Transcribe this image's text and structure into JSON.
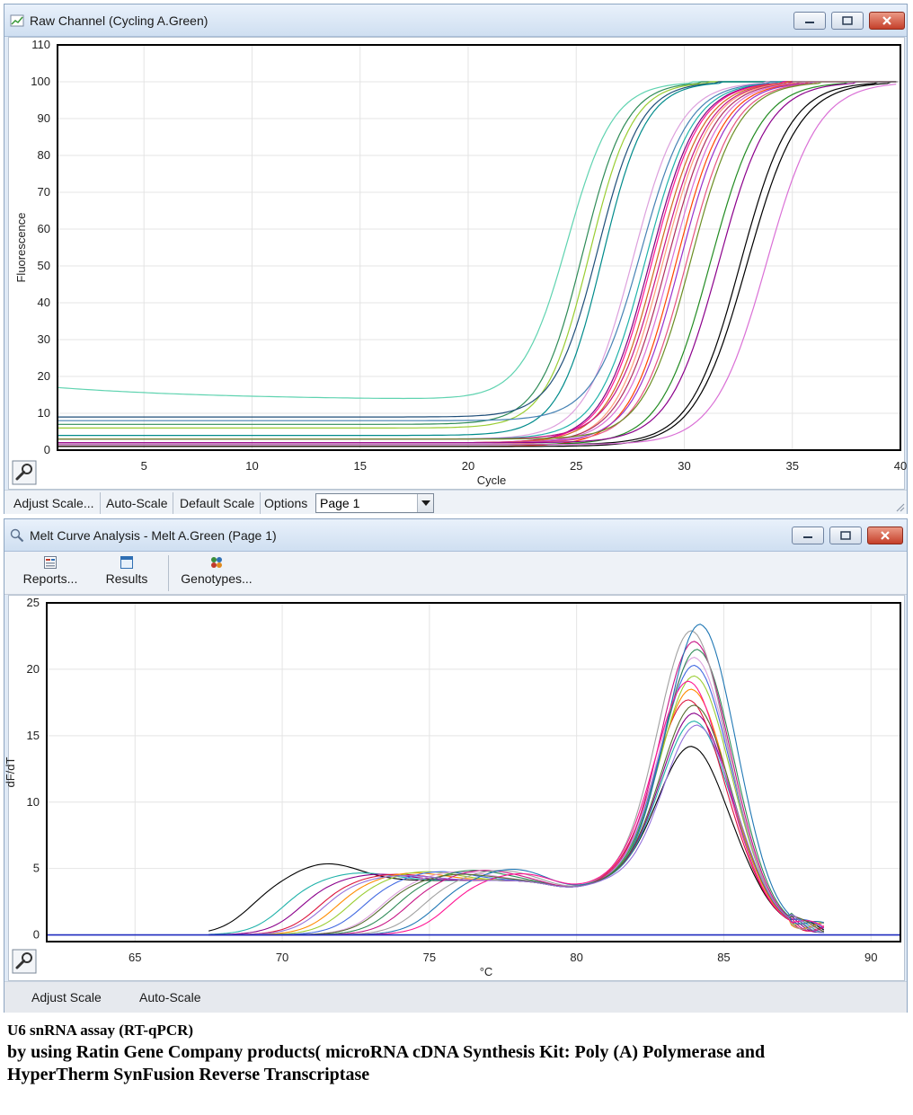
{
  "window1": {
    "title": "Raw Channel (Cycling A.Green)",
    "toolbar": {
      "adjust_scale": "Adjust Scale...",
      "auto_scale": "Auto-Scale",
      "default_scale": "Default Scale",
      "options": "Options",
      "page_select": "Page 1"
    }
  },
  "window2": {
    "title": "Melt Curve Analysis - Melt A.Green (Page 1)",
    "ribbon": {
      "reports": "Reports...",
      "results": "Results",
      "genotypes": "Genotypes..."
    },
    "toolbar": {
      "adjust_scale": "Adjust Scale",
      "auto_scale": "Auto-Scale"
    }
  },
  "caption": {
    "line1": "U6 snRNA assay (RT-qPCR)",
    "line2": "by using Ratin Gene Company products( microRNA cDNA Synthesis Kit: Poly (A) Polymerase and",
    "line3": "HyperTherm SynFusion Reverse Transcriptase"
  },
  "chart_data": [
    {
      "type": "line",
      "xlabel": "Cycle",
      "ylabel": "Fluorescence",
      "xlim": [
        1,
        40
      ],
      "ylim": [
        0,
        110
      ],
      "x_ticks": [
        5,
        10,
        15,
        20,
        25,
        30,
        35,
        40
      ],
      "y_ticks": [
        0,
        10,
        20,
        30,
        40,
        50,
        60,
        70,
        80,
        90,
        100,
        110
      ],
      "grid": true,
      "model": "sigmoid: baseline + (100 - baseline) / (1 + exp(-(cycle - midpoint) / slope)), plateau at 100",
      "series": [
        {
          "color": "#5fd3b0",
          "baseline": 17,
          "midpoint": 24.6,
          "slope": 1.05
        },
        {
          "color": "#2e8b57",
          "baseline": 7,
          "midpoint": 25.3,
          "slope": 1.0
        },
        {
          "color": "#9acd32",
          "baseline": 6,
          "midpoint": 25.6,
          "slope": 1.0
        },
        {
          "color": "#1f4e79",
          "baseline": 9,
          "midpoint": 26.0,
          "slope": 1.0
        },
        {
          "color": "#008b8b",
          "baseline": 4,
          "midpoint": 26.2,
          "slope": 1.0
        },
        {
          "color": "#dda0dd",
          "baseline": 3,
          "midpoint": 27.6,
          "slope": 1.1
        },
        {
          "color": "#4682b4",
          "baseline": 8,
          "midpoint": 28.0,
          "slope": 1.1
        },
        {
          "color": "#20b2aa",
          "baseline": 3,
          "midpoint": 28.2,
          "slope": 1.1
        },
        {
          "color": "#800080",
          "baseline": 2,
          "midpoint": 28.4,
          "slope": 1.1
        },
        {
          "color": "#ff1493",
          "baseline": 2,
          "midpoint": 28.5,
          "slope": 1.1
        },
        {
          "color": "#d2691e",
          "baseline": 2,
          "midpoint": 28.7,
          "slope": 1.1
        },
        {
          "color": "#c71585",
          "baseline": 3,
          "midpoint": 28.9,
          "slope": 1.1
        },
        {
          "color": "#ffa07a",
          "baseline": 1.5,
          "midpoint": 29.0,
          "slope": 1.1
        },
        {
          "color": "#b03060",
          "baseline": 2,
          "midpoint": 29.2,
          "slope": 1.1
        },
        {
          "color": "#da70d6",
          "baseline": 2,
          "midpoint": 29.4,
          "slope": 1.1
        },
        {
          "color": "#ff4500",
          "baseline": 1,
          "midpoint": 29.6,
          "slope": 1.1
        },
        {
          "color": "#9932cc",
          "baseline": 2,
          "midpoint": 29.8,
          "slope": 1.1
        },
        {
          "color": "#e75480",
          "baseline": 2,
          "midpoint": 30.1,
          "slope": 1.1
        },
        {
          "color": "#6b8e23",
          "baseline": 3,
          "midpoint": 30.3,
          "slope": 1.1
        },
        {
          "color": "#228b22",
          "baseline": 1.5,
          "midpoint": 31.2,
          "slope": 1.15
        },
        {
          "color": "#8b008b",
          "baseline": 2,
          "midpoint": 31.6,
          "slope": 1.15
        },
        {
          "color": "#000000",
          "baseline": 1.5,
          "midpoint": 32.6,
          "slope": 1.15
        },
        {
          "color": "#000000",
          "baseline": 1,
          "midpoint": 32.9,
          "slope": 1.2
        },
        {
          "color": "#da70d6",
          "baseline": 1.5,
          "midpoint": 33.8,
          "slope": 1.2
        }
      ]
    },
    {
      "type": "line",
      "xlabel": "°C",
      "ylabel": "dF/dT",
      "xlim": [
        62,
        91
      ],
      "ylim": [
        -0.5,
        25
      ],
      "x_ticks": [
        65,
        70,
        75,
        80,
        85,
        90
      ],
      "y_ticks": [
        0,
        5,
        10,
        15,
        20,
        25
      ],
      "grid": true,
      "model": "low-temperature bump (height, center) + plateau 4.2 to 81 + main peak at ~84 °C (height)",
      "baseline_color": "#1f2bbf",
      "series": [
        {
          "color": "#000000",
          "peak": 13.7,
          "peak_at": 83.9,
          "bump": 5.4,
          "bump_at": 71.5
        },
        {
          "color": "#20b2aa",
          "peak": 15.6,
          "peak_at": 84.0,
          "bump": 4.7,
          "bump_at": 72.6
        },
        {
          "color": "#8b008b",
          "peak": 16.2,
          "peak_at": 84.0,
          "bump": 4.6,
          "bump_at": 73.2
        },
        {
          "color": "#dc143c",
          "peak": 17.2,
          "peak_at": 83.8,
          "bump": 4.6,
          "bump_at": 73.8
        },
        {
          "color": "#ff8c00",
          "peak": 18.0,
          "peak_at": 83.9,
          "bump": 4.7,
          "bump_at": 74.4
        },
        {
          "color": "#9acd32",
          "peak": 19.0,
          "peak_at": 84.0,
          "bump": 4.8,
          "bump_at": 74.8
        },
        {
          "color": "#4169e1",
          "peak": 19.8,
          "peak_at": 84.0,
          "bump": 4.8,
          "bump_at": 75.3
        },
        {
          "color": "#dda0dd",
          "peak": 20.4,
          "peak_at": 84.0,
          "bump": 4.8,
          "bump_at": 75.9
        },
        {
          "color": "#2e8b57",
          "peak": 21.0,
          "peak_at": 84.1,
          "bump": 4.9,
          "bump_at": 76.4
        },
        {
          "color": "#c71585",
          "peak": 21.6,
          "peak_at": 84.0,
          "bump": 4.9,
          "bump_at": 76.8
        },
        {
          "color": "#a0a0a0",
          "peak": 22.4,
          "peak_at": 83.9,
          "bump": 4.9,
          "bump_at": 77.3
        },
        {
          "color": "#1f77b4",
          "peak": 22.9,
          "peak_at": 84.2,
          "bump": 5.0,
          "bump_at": 77.8
        },
        {
          "color": "#ff1493",
          "peak": 18.6,
          "peak_at": 83.8,
          "bump": 4.7,
          "bump_at": 78.2
        },
        {
          "color": "#556b2f",
          "peak": 16.8,
          "peak_at": 84.0,
          "bump": 4.6,
          "bump_at": 76.0
        },
        {
          "color": "#9370db",
          "peak": 15.3,
          "peak_at": 84.1,
          "bump": 4.5,
          "bump_at": 74.0
        }
      ]
    }
  ]
}
